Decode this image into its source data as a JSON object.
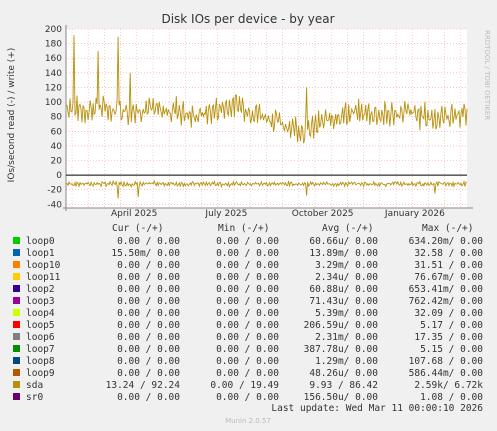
{
  "chart_data": {
    "type": "line",
    "title": "Disk IOs per device - by year",
    "ylabel": "IOs/second read (-) / write (+)",
    "side_label": "RRDTOOL / TOBI OETIKER",
    "ylim": [
      -45,
      200
    ],
    "y_ticks": [
      -40,
      -20,
      0,
      20,
      40,
      60,
      80,
      100,
      120,
      140,
      160,
      180,
      200
    ],
    "x_labels": [
      "April 2025",
      "July 2025",
      "October 2025",
      "January 2026"
    ],
    "grid": true,
    "series_name": "sda",
    "series_color": "#b8900c",
    "write_baseline": [
      [
        0,
        95
      ],
      [
        4,
        88
      ],
      [
        8,
        92
      ],
      [
        12,
        90
      ],
      [
        16,
        88
      ],
      [
        20,
        92
      ],
      [
        24,
        87
      ],
      [
        28,
        90
      ],
      [
        31,
        80
      ],
      [
        35,
        85
      ],
      [
        39,
        92
      ],
      [
        43,
        97
      ],
      [
        46,
        88
      ],
      [
        50,
        80
      ],
      [
        53,
        72
      ],
      [
        57,
        65
      ],
      [
        60,
        60
      ],
      [
        64,
        72
      ],
      [
        68,
        82
      ],
      [
        72,
        85
      ],
      [
        76,
        84
      ],
      [
        80,
        82
      ],
      [
        84,
        86
      ],
      [
        88,
        82
      ],
      [
        92,
        78
      ],
      [
        96,
        82
      ],
      [
        100,
        85
      ]
    ],
    "read_level": -12,
    "write_spikes": [
      [
        13,
        100
      ],
      [
        16,
        52
      ],
      [
        2,
        100
      ],
      [
        8,
        78
      ],
      [
        60,
        60
      ]
    ],
    "read_spikes": [
      [
        13,
        -32
      ],
      [
        18,
        -30
      ],
      [
        60,
        -28
      ],
      [
        92,
        -25
      ]
    ],
    "legend_header": {
      "cur": "Cur (-/+)",
      "min": "Min (-/+)",
      "avg": "Avg (-/+)",
      "max": "Max (-/+)"
    },
    "legend": [
      {
        "name": "loop0",
        "color": "#00cc00",
        "cur": "0.00 /  0.00",
        "min": "0.00 /  0.00",
        "avg": "60.66u/  0.00",
        "max": "634.20m/  0.00"
      },
      {
        "name": "loop1",
        "color": "#0066b3",
        "cur": "15.50m/  0.00",
        "min": "0.00 /  0.00",
        "avg": "13.89m/  0.00",
        "max": "32.58 /  0.00"
      },
      {
        "name": "loop10",
        "color": "#ff8000",
        "cur": "0.00 /  0.00",
        "min": "0.00 /  0.00",
        "avg": "3.29m/  0.00",
        "max": "31.51 /  0.00"
      },
      {
        "name": "loop11",
        "color": "#ffcc00",
        "cur": "0.00 /  0.00",
        "min": "0.00 /  0.00",
        "avg": "2.34u/  0.00",
        "max": "76.67m/  0.00"
      },
      {
        "name": "loop2",
        "color": "#330099",
        "cur": "0.00 /  0.00",
        "min": "0.00 /  0.00",
        "avg": "60.88u/  0.00",
        "max": "653.41m/  0.00"
      },
      {
        "name": "loop3",
        "color": "#990099",
        "cur": "0.00 /  0.00",
        "min": "0.00 /  0.00",
        "avg": "71.43u/  0.00",
        "max": "762.42m/  0.00"
      },
      {
        "name": "loop4",
        "color": "#ccff00",
        "cur": "0.00 /  0.00",
        "min": "0.00 /  0.00",
        "avg": "5.39m/  0.00",
        "max": "32.09 /  0.00"
      },
      {
        "name": "loop5",
        "color": "#ff0000",
        "cur": "0.00 /  0.00",
        "min": "0.00 /  0.00",
        "avg": "206.59u/  0.00",
        "max": "5.17 /  0.00"
      },
      {
        "name": "loop6",
        "color": "#808080",
        "cur": "0.00 /  0.00",
        "min": "0.00 /  0.00",
        "avg": "2.31m/  0.00",
        "max": "17.35 /  0.00"
      },
      {
        "name": "loop7",
        "color": "#008f00",
        "cur": "0.00 /  0.00",
        "min": "0.00 /  0.00",
        "avg": "387.78u/  0.00",
        "max": "5.15 /  0.00"
      },
      {
        "name": "loop8",
        "color": "#00487d",
        "cur": "0.00 /  0.00",
        "min": "0.00 /  0.00",
        "avg": "1.29m/  0.00",
        "max": "107.68 /  0.00"
      },
      {
        "name": "loop9",
        "color": "#b35a00",
        "cur": "0.00 /  0.00",
        "min": "0.00 /  0.00",
        "avg": "48.26u/  0.00",
        "max": "586.44m/  0.00"
      },
      {
        "name": "sda",
        "color": "#b8900c",
        "cur": "13.24 / 92.24",
        "min": "0.00 / 19.49",
        "avg": "9.93 / 86.42",
        "max": "2.59k/  6.72k"
      },
      {
        "name": "sr0",
        "color": "#6b006b",
        "cur": "0.00 /  0.00",
        "min": "0.00 /  0.00",
        "avg": "156.50u/  0.00",
        "max": "1.08 /  0.00"
      }
    ],
    "last_update": "Last update: Wed Mar 11 00:00:10 2026",
    "munin_version": "Munin 2.0.57"
  }
}
